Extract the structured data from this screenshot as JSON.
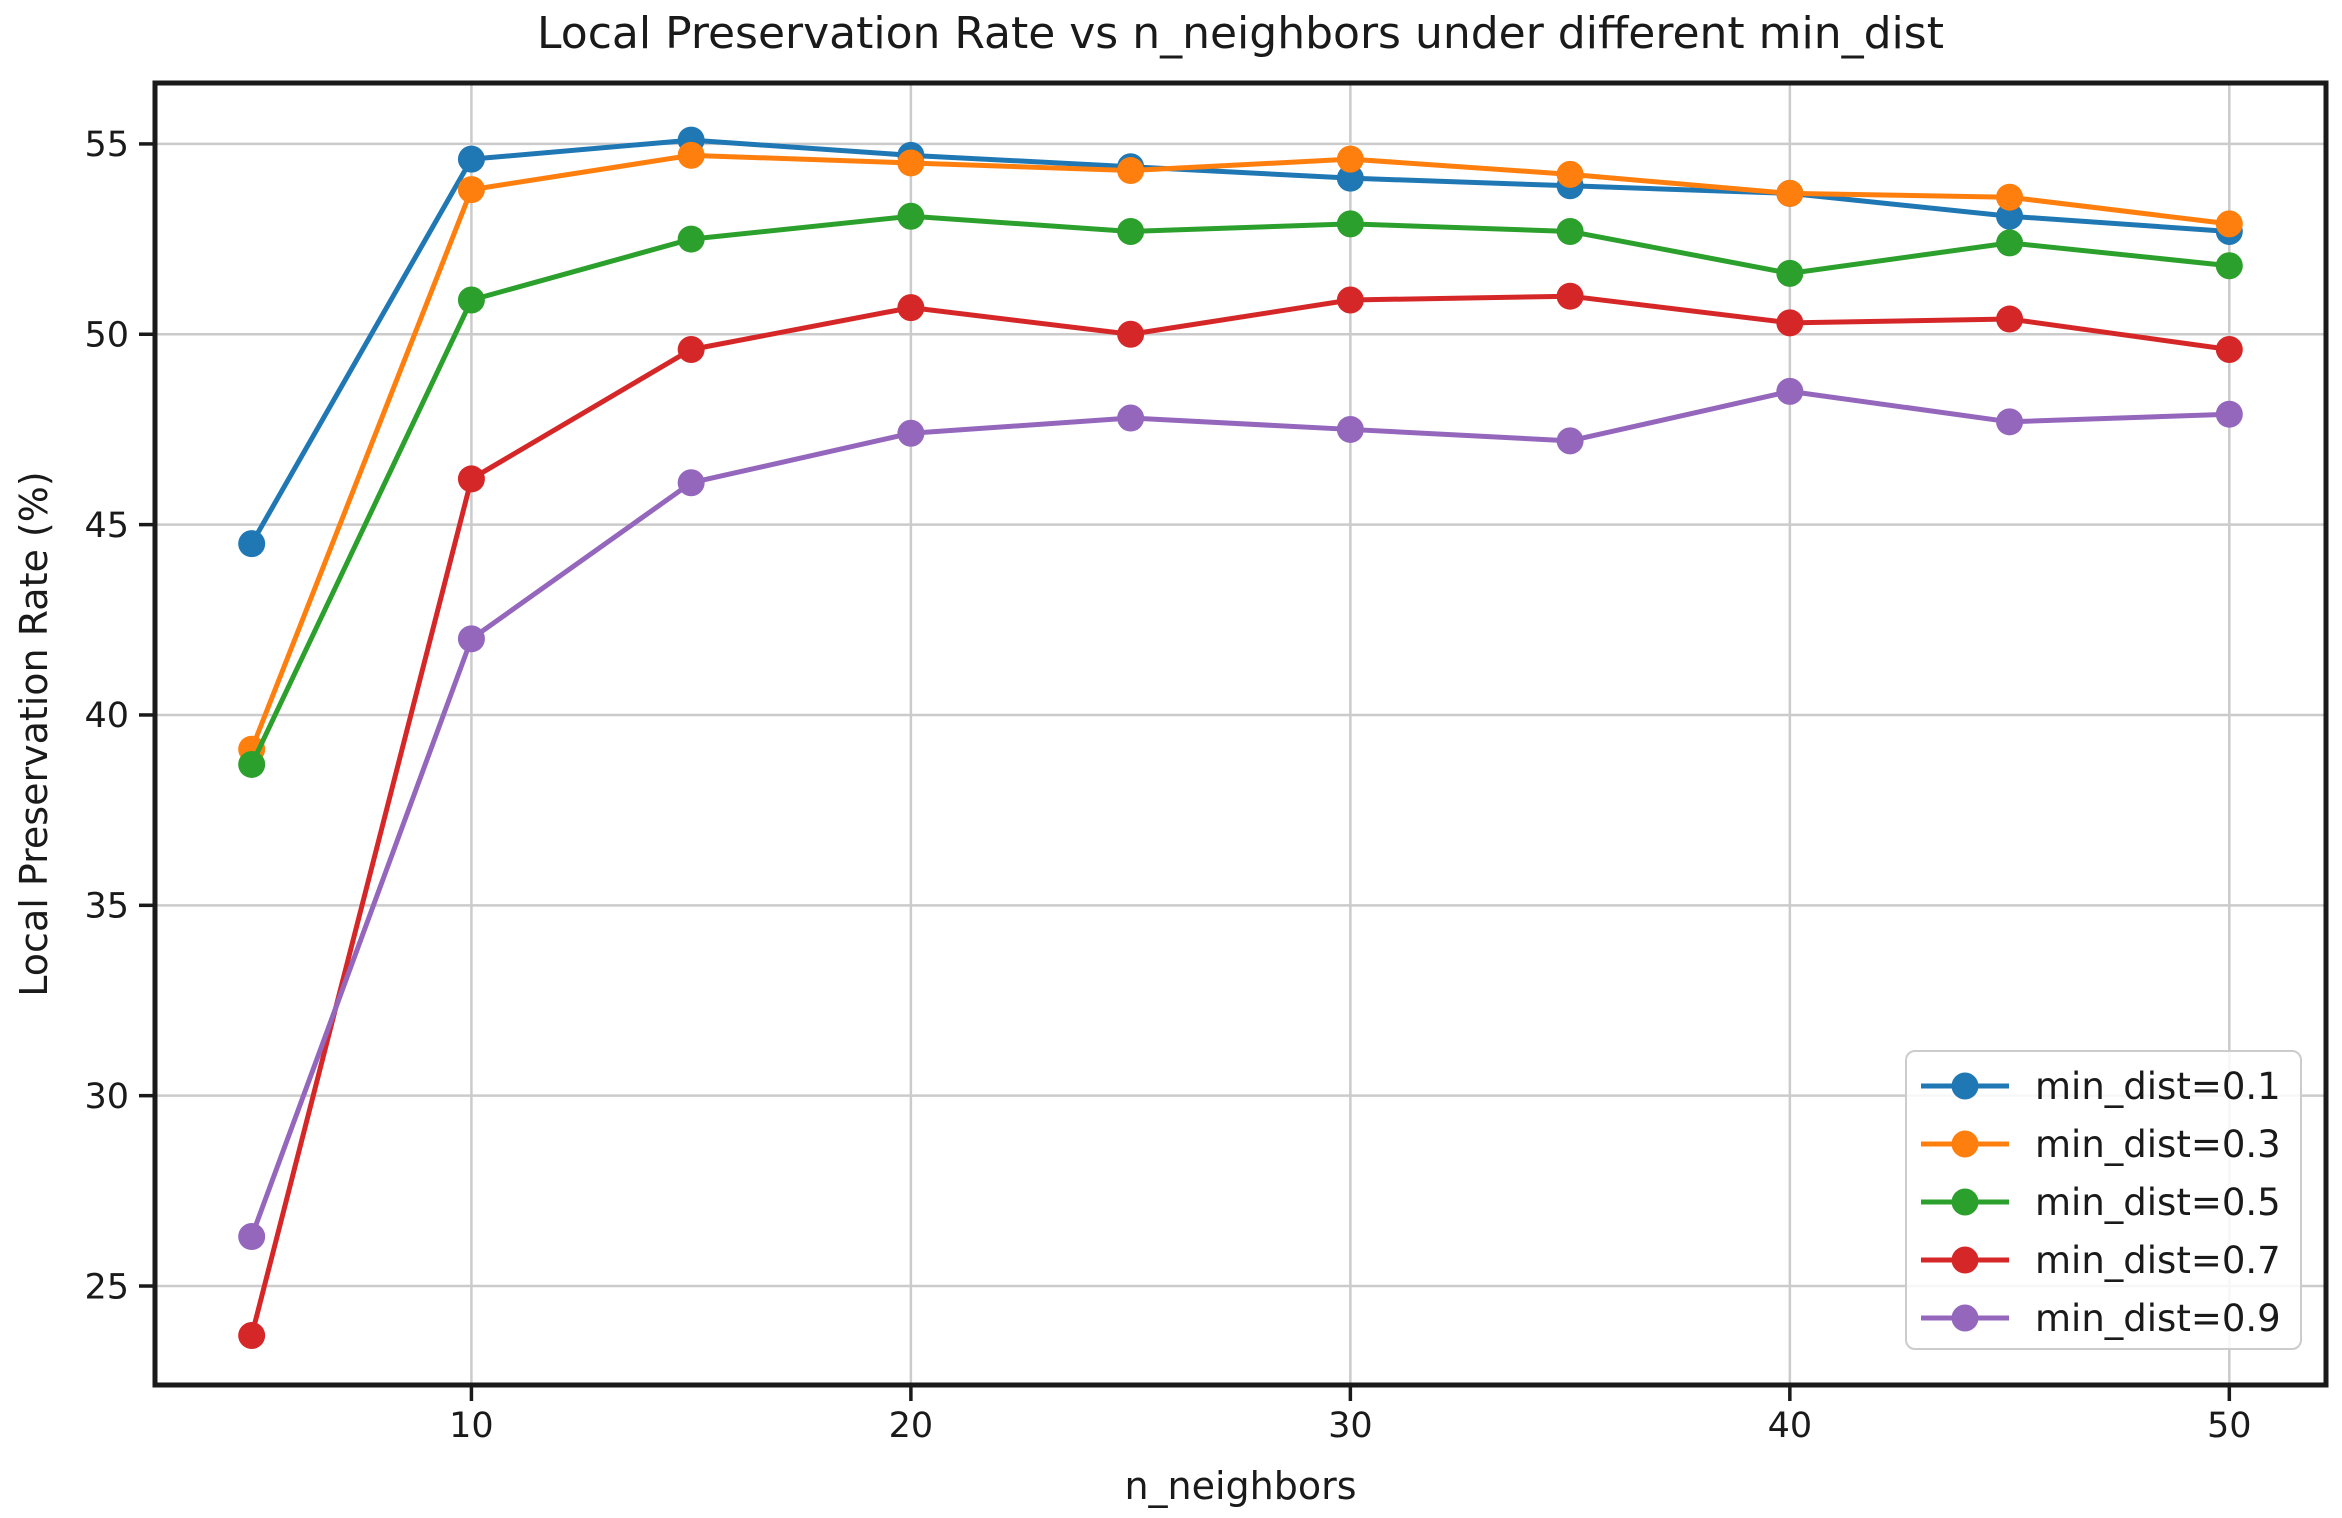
{
  "chart_data": {
    "type": "line",
    "title": "Local Preservation Rate vs n_neighbors under different min_dist",
    "xlabel": "n_neighbors",
    "ylabel": "Local Preservation Rate (%)",
    "x": [
      5,
      10,
      15,
      20,
      25,
      30,
      35,
      40,
      45,
      50
    ],
    "x_ticks": [
      10,
      20,
      30,
      40,
      50
    ],
    "y_ticks": [
      25,
      30,
      35,
      40,
      45,
      50,
      55
    ],
    "xlim": [
      2.8,
      52.2
    ],
    "ylim": [
      22.4,
      56.6
    ],
    "grid": true,
    "legend_position": "lower right",
    "grid_color": "#cbcbcb",
    "axis_color": "#1a1a1a",
    "series": [
      {
        "name": "min_dist=0.1",
        "color": "#1f77b4",
        "values": [
          44.5,
          54.6,
          55.1,
          54.7,
          54.4,
          54.1,
          53.9,
          53.7,
          53.1,
          52.7
        ]
      },
      {
        "name": "min_dist=0.3",
        "color": "#ff7f0e",
        "values": [
          39.1,
          53.8,
          54.7,
          54.5,
          54.3,
          54.6,
          54.2,
          53.7,
          53.6,
          52.9
        ]
      },
      {
        "name": "min_dist=0.5",
        "color": "#2ca02c",
        "values": [
          38.7,
          50.9,
          52.5,
          53.1,
          52.7,
          52.9,
          52.7,
          51.6,
          52.4,
          51.8
        ]
      },
      {
        "name": "min_dist=0.7",
        "color": "#d62728",
        "values": [
          23.7,
          46.2,
          49.6,
          50.7,
          50.0,
          50.9,
          51.0,
          50.3,
          50.4,
          49.6
        ]
      },
      {
        "name": "min_dist=0.9",
        "color": "#9467bd",
        "values": [
          26.3,
          42.0,
          46.1,
          47.4,
          47.8,
          47.5,
          47.2,
          48.5,
          47.7,
          47.9
        ]
      }
    ]
  }
}
